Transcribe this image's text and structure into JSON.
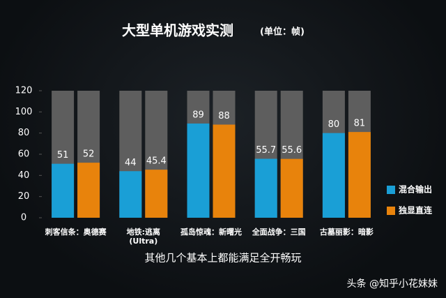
{
  "chart_data": {
    "type": "bar",
    "title": "大型单机游戏实测",
    "subtitle": "(单位：帧)",
    "categories": [
      "刺客信条：奥德赛",
      "地铁:逃离\n(Ultra)",
      "孤岛惊魂：新曙光",
      "全面战争：三国",
      "古墓丽影：暗影"
    ],
    "series": [
      {
        "name": "混合输出",
        "color": "#1a9fd6",
        "values": [
          51,
          44,
          89,
          55.7,
          80
        ]
      },
      {
        "name": "独显直连",
        "color": "#e8830c",
        "values": [
          52,
          45.4,
          88,
          55.6,
          81
        ]
      }
    ],
    "ylim": [
      0,
      120
    ],
    "yticks": [
      0,
      20,
      40,
      60,
      80,
      100,
      120
    ],
    "grid": false,
    "legend": "right"
  },
  "caption": "其他几个基本上都能满足全开畅玩",
  "watermark": "头条 @知乎小花妹妹"
}
